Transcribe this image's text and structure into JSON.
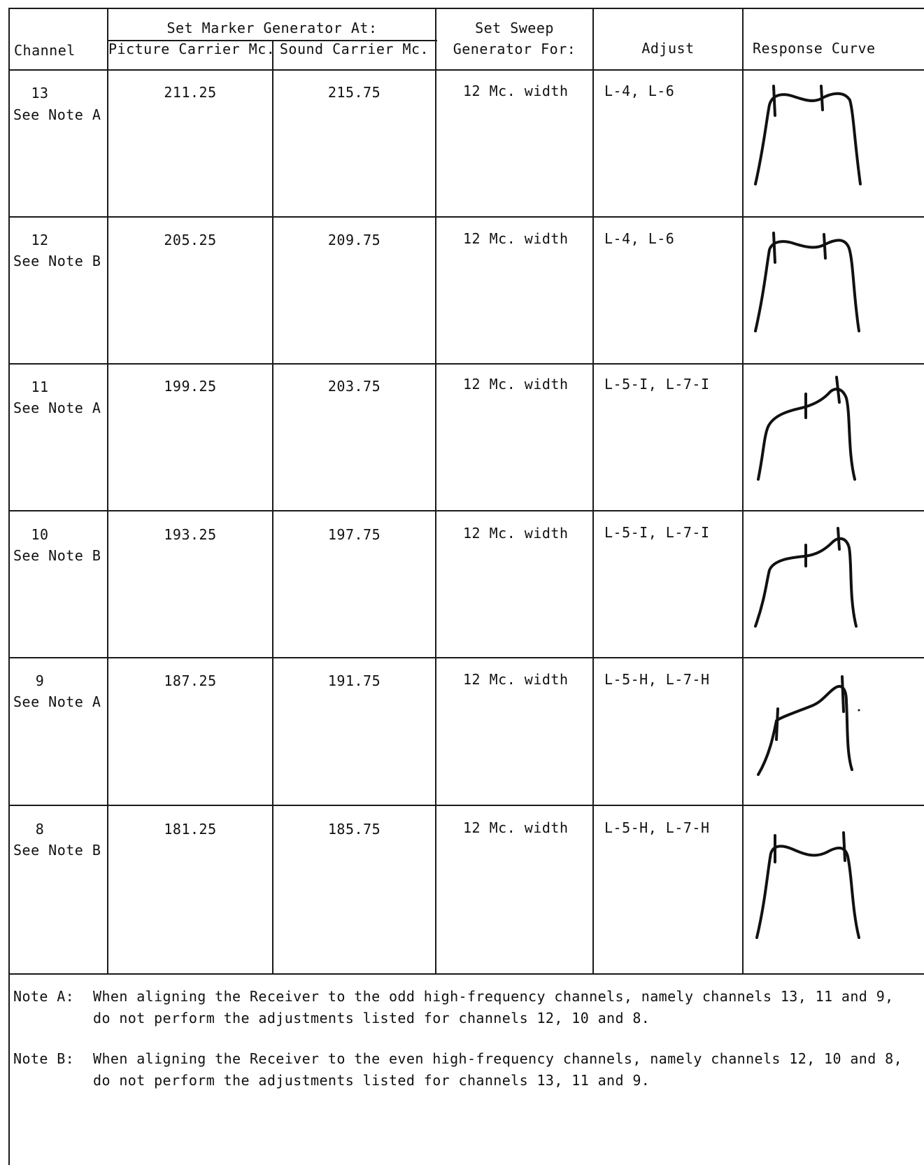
{
  "headers": {
    "channel": "Channel",
    "marker_group": "Set Marker Generator At:",
    "picture": "Picture Carrier Mc.",
    "sound": "Sound Carrier Mc.",
    "sweep_line1": "Set Sweep",
    "sweep_line2": "Generator For:",
    "adjust": "Adjust",
    "response": "Response Curve"
  },
  "rows": [
    {
      "channel": "13",
      "note": "See Note A",
      "picture": "211.25",
      "sound": "215.75",
      "sweep": "12 Mc. width",
      "adjust": "L-4, L-6",
      "curve": "symmetric"
    },
    {
      "channel": "12",
      "note": "See Note B",
      "picture": "205.25",
      "sound": "209.75",
      "sweep": "12 Mc. width",
      "adjust": "L-4, L-6",
      "curve": "symmetric"
    },
    {
      "channel": "11",
      "note": "See Note A",
      "picture": "199.25",
      "sound": "203.75",
      "sweep": "12 Mc. width",
      "adjust": "L-5-I, L-7-I",
      "curve": "rising"
    },
    {
      "channel": "10",
      "note": "See Note B",
      "picture": "193.25",
      "sound": "197.75",
      "sweep": "12 Mc. width",
      "adjust": "L-5-I, L-7-I",
      "curve": "rising"
    },
    {
      "channel": "9",
      "note": "See Note A",
      "picture": "187.25",
      "sound": "191.75",
      "sweep": "12 Mc. width",
      "adjust": "L-5-H, L-7-H",
      "curve": "steep-rising"
    },
    {
      "channel": "8",
      "note": "See Note B",
      "picture": "181.25",
      "sound": "185.75",
      "sweep": "12 Mc. width",
      "adjust": "L-5-H, L-7-H",
      "curve": "symmetric"
    }
  ],
  "notes": [
    {
      "label": "Note A:",
      "text": "When aligning the Receiver to the odd high-frequency channels, namely channels 13, 11 and 9, do not perform the adjustments listed for channels 12, 10 and 8."
    },
    {
      "label": "Note B:",
      "text": "When aligning the Receiver to the even high-frequency channels, namely channels 12, 10 and 8, do not perform the adjustments listed for channels 13, 11 and 9."
    }
  ]
}
